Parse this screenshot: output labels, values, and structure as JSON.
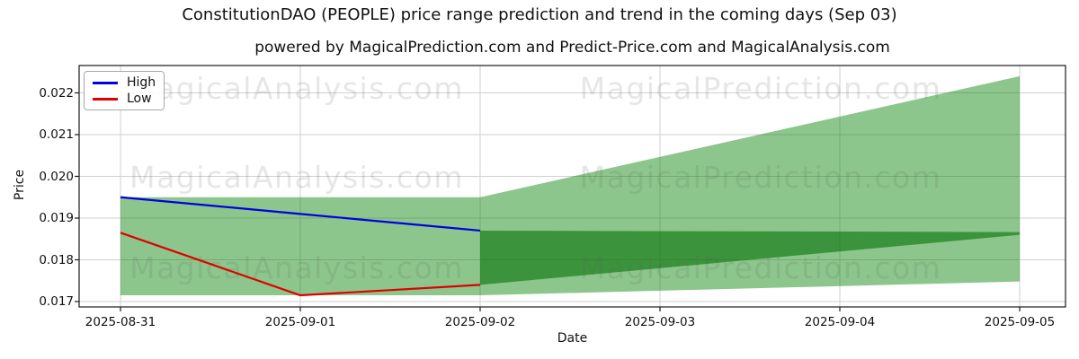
{
  "figure": {
    "title": "ConstitutionDAO (PEOPLE) price range prediction and trend in the coming days (Sep 03)",
    "subtitle": "powered by MagicalPrediction.com and Predict-Price.com and MagicalAnalysis.com"
  },
  "axes": {
    "x_label": "Date",
    "y_label": "Price"
  },
  "legend": {
    "items": [
      {
        "label": "High",
        "color": "#0000e0"
      },
      {
        "label": "Low",
        "color": "#e00000"
      }
    ]
  },
  "watermark": {
    "left": "MagicalAnalysis.com",
    "right": "MagicalPrediction.com"
  },
  "colors": {
    "band_light": "rgba(0,128,0,0.45)",
    "band_dark": "rgba(0,110,0,0.58)",
    "grid": "#cfcfcf",
    "spine": "#1a1a1a",
    "high_line": "#0000e0",
    "low_line": "#e00000"
  },
  "chart_data": {
    "type": "line",
    "title": "ConstitutionDAO (PEOPLE) price range prediction and trend in the coming days (Sep 03)",
    "xlabel": "Date",
    "ylabel": "Price",
    "grid": true,
    "legend_position": "upper left",
    "x": [
      "2025-08-31",
      "2025-09-01",
      "2025-09-02",
      "2025-09-03",
      "2025-09-04",
      "2025-09-05"
    ],
    "y_ticks": [
      "0.017",
      "0.018",
      "0.019",
      "0.020",
      "0.021",
      "0.022"
    ],
    "ylim": [
      0.0169,
      0.0226
    ],
    "series": [
      {
        "name": "High",
        "color": "#0000e0",
        "x": [
          "2025-08-31",
          "2025-09-01",
          "2025-09-02"
        ],
        "values": [
          0.0195,
          0.0191,
          0.0187
        ]
      },
      {
        "name": "Low",
        "color": "#e00000",
        "x": [
          "2025-08-31",
          "2025-09-01",
          "2025-09-02"
        ],
        "values": [
          0.01865,
          0.01715,
          0.0174
        ]
      }
    ],
    "bands": [
      {
        "name": "historical-range",
        "fill": "rgba(0,128,0,0.45)",
        "x": [
          "2025-08-31",
          "2025-09-02"
        ],
        "upper": [
          0.0195,
          0.0195
        ],
        "lower": [
          0.01715,
          0.01715
        ]
      },
      {
        "name": "forecast-outer",
        "fill": "rgba(0,128,0,0.45)",
        "x": [
          "2025-09-02",
          "2025-09-05"
        ],
        "upper": [
          0.0195,
          0.0224
        ],
        "lower": [
          0.01715,
          0.01748
        ]
      },
      {
        "name": "forecast-inner",
        "fill": "rgba(0,110,0,0.58)",
        "x": [
          "2025-09-02",
          "2025-09-05"
        ],
        "upper": [
          0.0187,
          0.018665
        ],
        "lower": [
          0.0174,
          0.0186
        ]
      }
    ]
  }
}
